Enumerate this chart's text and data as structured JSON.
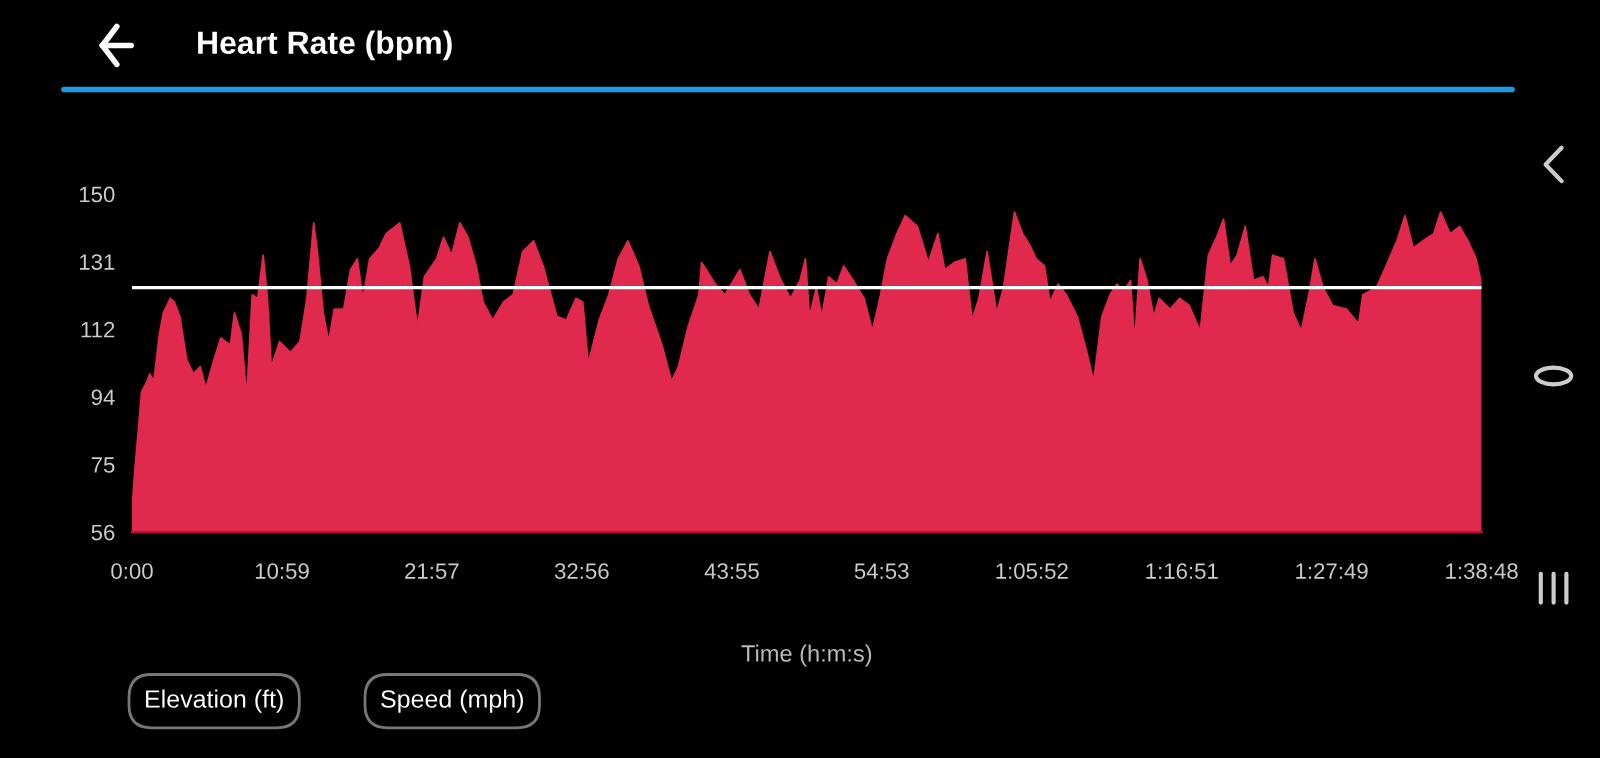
{
  "chart_data": {
    "type": "area",
    "title": "Heart Rate (bpm)",
    "xlabel": "Time (h:m:s)",
    "annotations": [
      "Elevation (ft)",
      "Speed (mph)"
    ],
    "xlim": [
      0,
      98.8
    ],
    "ylim": [
      56,
      150
    ],
    "xticks": [
      {
        "value": 0,
        "label": "0:00"
      },
      {
        "value": 10.98,
        "label": "10:59"
      },
      {
        "value": 21.95,
        "label": "21:57"
      },
      {
        "value": 32.93,
        "label": "32:56"
      },
      {
        "value": 43.92,
        "label": "43:55"
      },
      {
        "value": 54.88,
        "label": "54:53"
      },
      {
        "value": 65.87,
        "label": "1:05:52"
      },
      {
        "value": 76.85,
        "label": "1:16:51"
      },
      {
        "value": 87.82,
        "label": "1:27:49"
      },
      {
        "value": 98.8,
        "label": "1:38:48"
      }
    ],
    "yticks": [
      {
        "value": 56,
        "label": "56"
      },
      {
        "value": 74.8,
        "label": "75"
      },
      {
        "value": 93.6,
        "label": "94"
      },
      {
        "value": 112.4,
        "label": "112"
      },
      {
        "value": 131.2,
        "label": "131"
      },
      {
        "value": 150,
        "label": "150"
      }
    ],
    "ref_lines": [
      {
        "axis": "y",
        "value": 124,
        "color": "#ffffff"
      }
    ],
    "grid": false,
    "legend": false,
    "series": [
      {
        "color": "#e0294c",
        "x": [
          0,
          0.2,
          0.5,
          0.7,
          1.1,
          1.3,
          1.6,
          2.0,
          2.3,
          2.8,
          3.1,
          3.5,
          4.0,
          4.5,
          5.0,
          5.4,
          6.0,
          6.5,
          7.2,
          7.5,
          8.0,
          8.4,
          8.8,
          9.2,
          9.6,
          9.9,
          10.2,
          10.8,
          11.6,
          12.3,
          12.8,
          13.3,
          13.6,
          14.0,
          14.4,
          14.8,
          15.5,
          16.0,
          16.5,
          16.9,
          17.4,
          18.1,
          18.6,
          19.6,
          20.3,
          20.9,
          21.4,
          22.3,
          22.8,
          23.4,
          24.0,
          24.6,
          25.2,
          25.7,
          26.4,
          27.2,
          27.9,
          28.6,
          29.4,
          30.1,
          31.1,
          31.8,
          32.5,
          33.0,
          33.4,
          34.2,
          34.9,
          35.6,
          36.3,
          37.1,
          37.8,
          38.8,
          39.5,
          40.0,
          40.7,
          41.5,
          41.7,
          42.7,
          43.4,
          44.5,
          45.2,
          45.9,
          46.7,
          47.4,
          48.2,
          48.9,
          49.3,
          49.6,
          50.1,
          50.5,
          51.0,
          51.6,
          52.1,
          52.8,
          53.6,
          54.2,
          54.8,
          55.3,
          56.0,
          56.6,
          57.5,
          58.3,
          59.0,
          59.5,
          60.2,
          61.0,
          61.5,
          62.0,
          62.6,
          63.3,
          63.8,
          64.6,
          65.2,
          65.7,
          66.2,
          66.8,
          67.2,
          67.8,
          68.4,
          69.2,
          69.9,
          70.4,
          71.0,
          71.6,
          72.1,
          72.6,
          73.1,
          73.4,
          73.8,
          74.3,
          74.8,
          75.2,
          76.0,
          76.7,
          77.4,
          78.2,
          78.8,
          79.4,
          79.9,
          80.4,
          80.9,
          81.5,
          82.1,
          82.8,
          83.2,
          83.5,
          84.3,
          85.0,
          85.6,
          86.2,
          86.6,
          87.2,
          87.9,
          88.9,
          89.8,
          90.1,
          91.1,
          91.8,
          92.6,
          93.2,
          93.8,
          94.5,
          95.3,
          95.8,
          96.5,
          97.2,
          97.8,
          98.4,
          98.8
        ],
        "values": [
          62,
          73,
          86,
          95,
          98,
          100,
          98,
          111,
          117,
          121,
          120,
          116,
          104,
          100,
          102,
          96,
          104,
          110,
          108,
          117,
          111,
          94,
          122,
          121,
          133,
          122,
          102,
          109,
          106,
          109,
          121,
          142,
          133,
          117,
          109,
          118,
          118,
          129,
          132,
          121,
          132,
          135,
          139,
          142,
          130,
          113,
          127,
          132,
          138,
          133,
          142,
          138,
          130,
          120,
          115,
          120,
          122,
          134,
          137,
          130,
          116,
          115,
          121,
          120,
          103,
          115,
          122,
          132,
          137,
          130,
          119,
          108,
          98,
          102,
          113,
          122,
          131,
          125,
          122,
          129,
          122,
          118,
          134,
          127,
          121,
          126,
          132,
          116,
          124,
          116,
          127,
          125,
          130,
          126,
          121,
          112,
          122,
          132,
          139,
          144,
          141,
          131,
          139,
          129,
          131,
          132,
          115,
          121,
          134,
          117,
          124,
          145,
          139,
          136,
          132,
          130,
          120,
          125,
          122,
          116,
          106,
          98,
          116,
          122,
          125,
          123,
          126,
          109,
          132,
          126,
          116,
          121,
          118,
          121,
          119,
          112,
          133,
          138,
          143,
          130,
          133,
          141,
          126,
          127,
          124,
          133,
          132,
          117,
          112,
          123,
          132,
          124,
          119,
          118,
          114,
          122,
          124,
          130,
          137,
          144,
          135,
          137,
          139,
          145,
          139,
          141,
          137,
          132,
          125
        ]
      }
    ]
  }
}
